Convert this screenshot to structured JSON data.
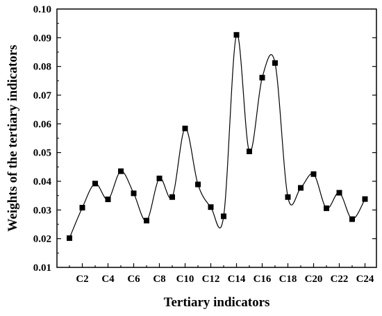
{
  "chart_data": {
    "type": "line",
    "title": "",
    "xlabel": "Tertiary indicators",
    "ylabel": "Weights of the tertiary indicators",
    "categories": [
      "C1",
      "C2",
      "C3",
      "C4",
      "C5",
      "C6",
      "C7",
      "C8",
      "C9",
      "C10",
      "C11",
      "C12",
      "C13",
      "C14",
      "C15",
      "C16",
      "C17",
      "C18",
      "C19",
      "C20",
      "C21",
      "C22",
      "C23",
      "C24"
    ],
    "x_tick_labels": [
      "C2",
      "C4",
      "C6",
      "C8",
      "C10",
      "C12",
      "C14",
      "C16",
      "C18",
      "C20",
      "C22",
      "C24"
    ],
    "series": [
      {
        "values": [
          0.0202,
          0.0308,
          0.0392,
          0.0337,
          0.0435,
          0.0358,
          0.0263,
          0.041,
          0.0345,
          0.0584,
          0.0389,
          0.031,
          0.0278,
          0.091,
          0.0504,
          0.0761,
          0.0812,
          0.0345,
          0.0377,
          0.0425,
          0.0306,
          0.036,
          0.0268,
          0.0338
        ],
        "marker": "square",
        "line_style": "smooth"
      }
    ],
    "ylim": [
      0.01,
      0.1
    ],
    "y_ticks": [
      0.01,
      0.02,
      0.03,
      0.04,
      0.05,
      0.06,
      0.07,
      0.08,
      0.09,
      0.1
    ],
    "y_tick_labels": [
      "0.01",
      "0.02",
      "0.03",
      "0.04",
      "0.05",
      "0.06",
      "0.07",
      "0.08",
      "0.09",
      "0.10"
    ],
    "grid": false,
    "legend": "none",
    "colors": {
      "line": "#000000",
      "marker": "#000000",
      "axis": "#000000"
    }
  }
}
